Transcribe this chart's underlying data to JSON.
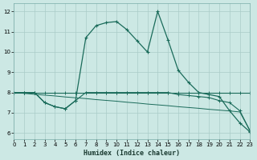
{
  "xlabel": "Humidex (Indice chaleur)",
  "xlim": [
    0,
    23
  ],
  "ylim": [
    5.7,
    12.4
  ],
  "yticks": [
    6,
    7,
    8,
    9,
    10,
    11,
    12
  ],
  "xticks": [
    0,
    1,
    2,
    3,
    4,
    5,
    6,
    7,
    8,
    9,
    10,
    11,
    12,
    13,
    14,
    15,
    16,
    17,
    18,
    19,
    20,
    21,
    22,
    23
  ],
  "bg_color": "#cce8e4",
  "grid_color": "#aaccc8",
  "line_color": "#1a6b5a",
  "series1_x": [
    0,
    1,
    2,
    3,
    4,
    5,
    6,
    7,
    8,
    9,
    10,
    11,
    12,
    13,
    14,
    15,
    16,
    17,
    18,
    19,
    20,
    21,
    22,
    23
  ],
  "series1_y": [
    8.0,
    8.0,
    8.0,
    8.0,
    8.0,
    8.0,
    8.0,
    8.0,
    8.0,
    8.0,
    8.0,
    8.0,
    8.0,
    8.0,
    8.0,
    8.0,
    8.0,
    8.0,
    8.0,
    8.0,
    8.0,
    8.0,
    8.0,
    8.0
  ],
  "series2_x": [
    0,
    1,
    2,
    3,
    4,
    5,
    6,
    7,
    8,
    9,
    10,
    11,
    12,
    13,
    14,
    15,
    16,
    17,
    18,
    19,
    20,
    21,
    22,
    23
  ],
  "series2_y": [
    8.0,
    8.0,
    8.0,
    7.5,
    7.3,
    7.2,
    7.6,
    8.0,
    8.0,
    8.0,
    8.0,
    8.0,
    8.0,
    8.0,
    8.0,
    8.0,
    7.9,
    7.85,
    7.8,
    7.75,
    7.6,
    7.5,
    7.1,
    6.1
  ],
  "series3_x": [
    0,
    1,
    2,
    3,
    4,
    5,
    6,
    7,
    8,
    9,
    10,
    11,
    12,
    13,
    14,
    15,
    16,
    17,
    18,
    19,
    20,
    21,
    22,
    23
  ],
  "series3_y": [
    8.0,
    8.0,
    8.0,
    7.5,
    7.3,
    7.2,
    7.6,
    10.7,
    11.3,
    11.45,
    11.5,
    11.1,
    10.55,
    10.0,
    12.0,
    10.6,
    9.1,
    8.5,
    8.0,
    7.9,
    7.8,
    7.1,
    6.5,
    6.05
  ],
  "series4_x": [
    0,
    1,
    2,
    3,
    4,
    5,
    6,
    7,
    8,
    9,
    10,
    11,
    12,
    13,
    14,
    15,
    16,
    17,
    18,
    19,
    20,
    21,
    22,
    23
  ],
  "series4_y": [
    8.0,
    7.96,
    7.91,
    7.87,
    7.83,
    7.78,
    7.74,
    7.7,
    7.65,
    7.61,
    7.57,
    7.52,
    7.48,
    7.43,
    7.39,
    7.35,
    7.3,
    7.26,
    7.22,
    7.17,
    7.13,
    7.09,
    7.04,
    6.1
  ]
}
